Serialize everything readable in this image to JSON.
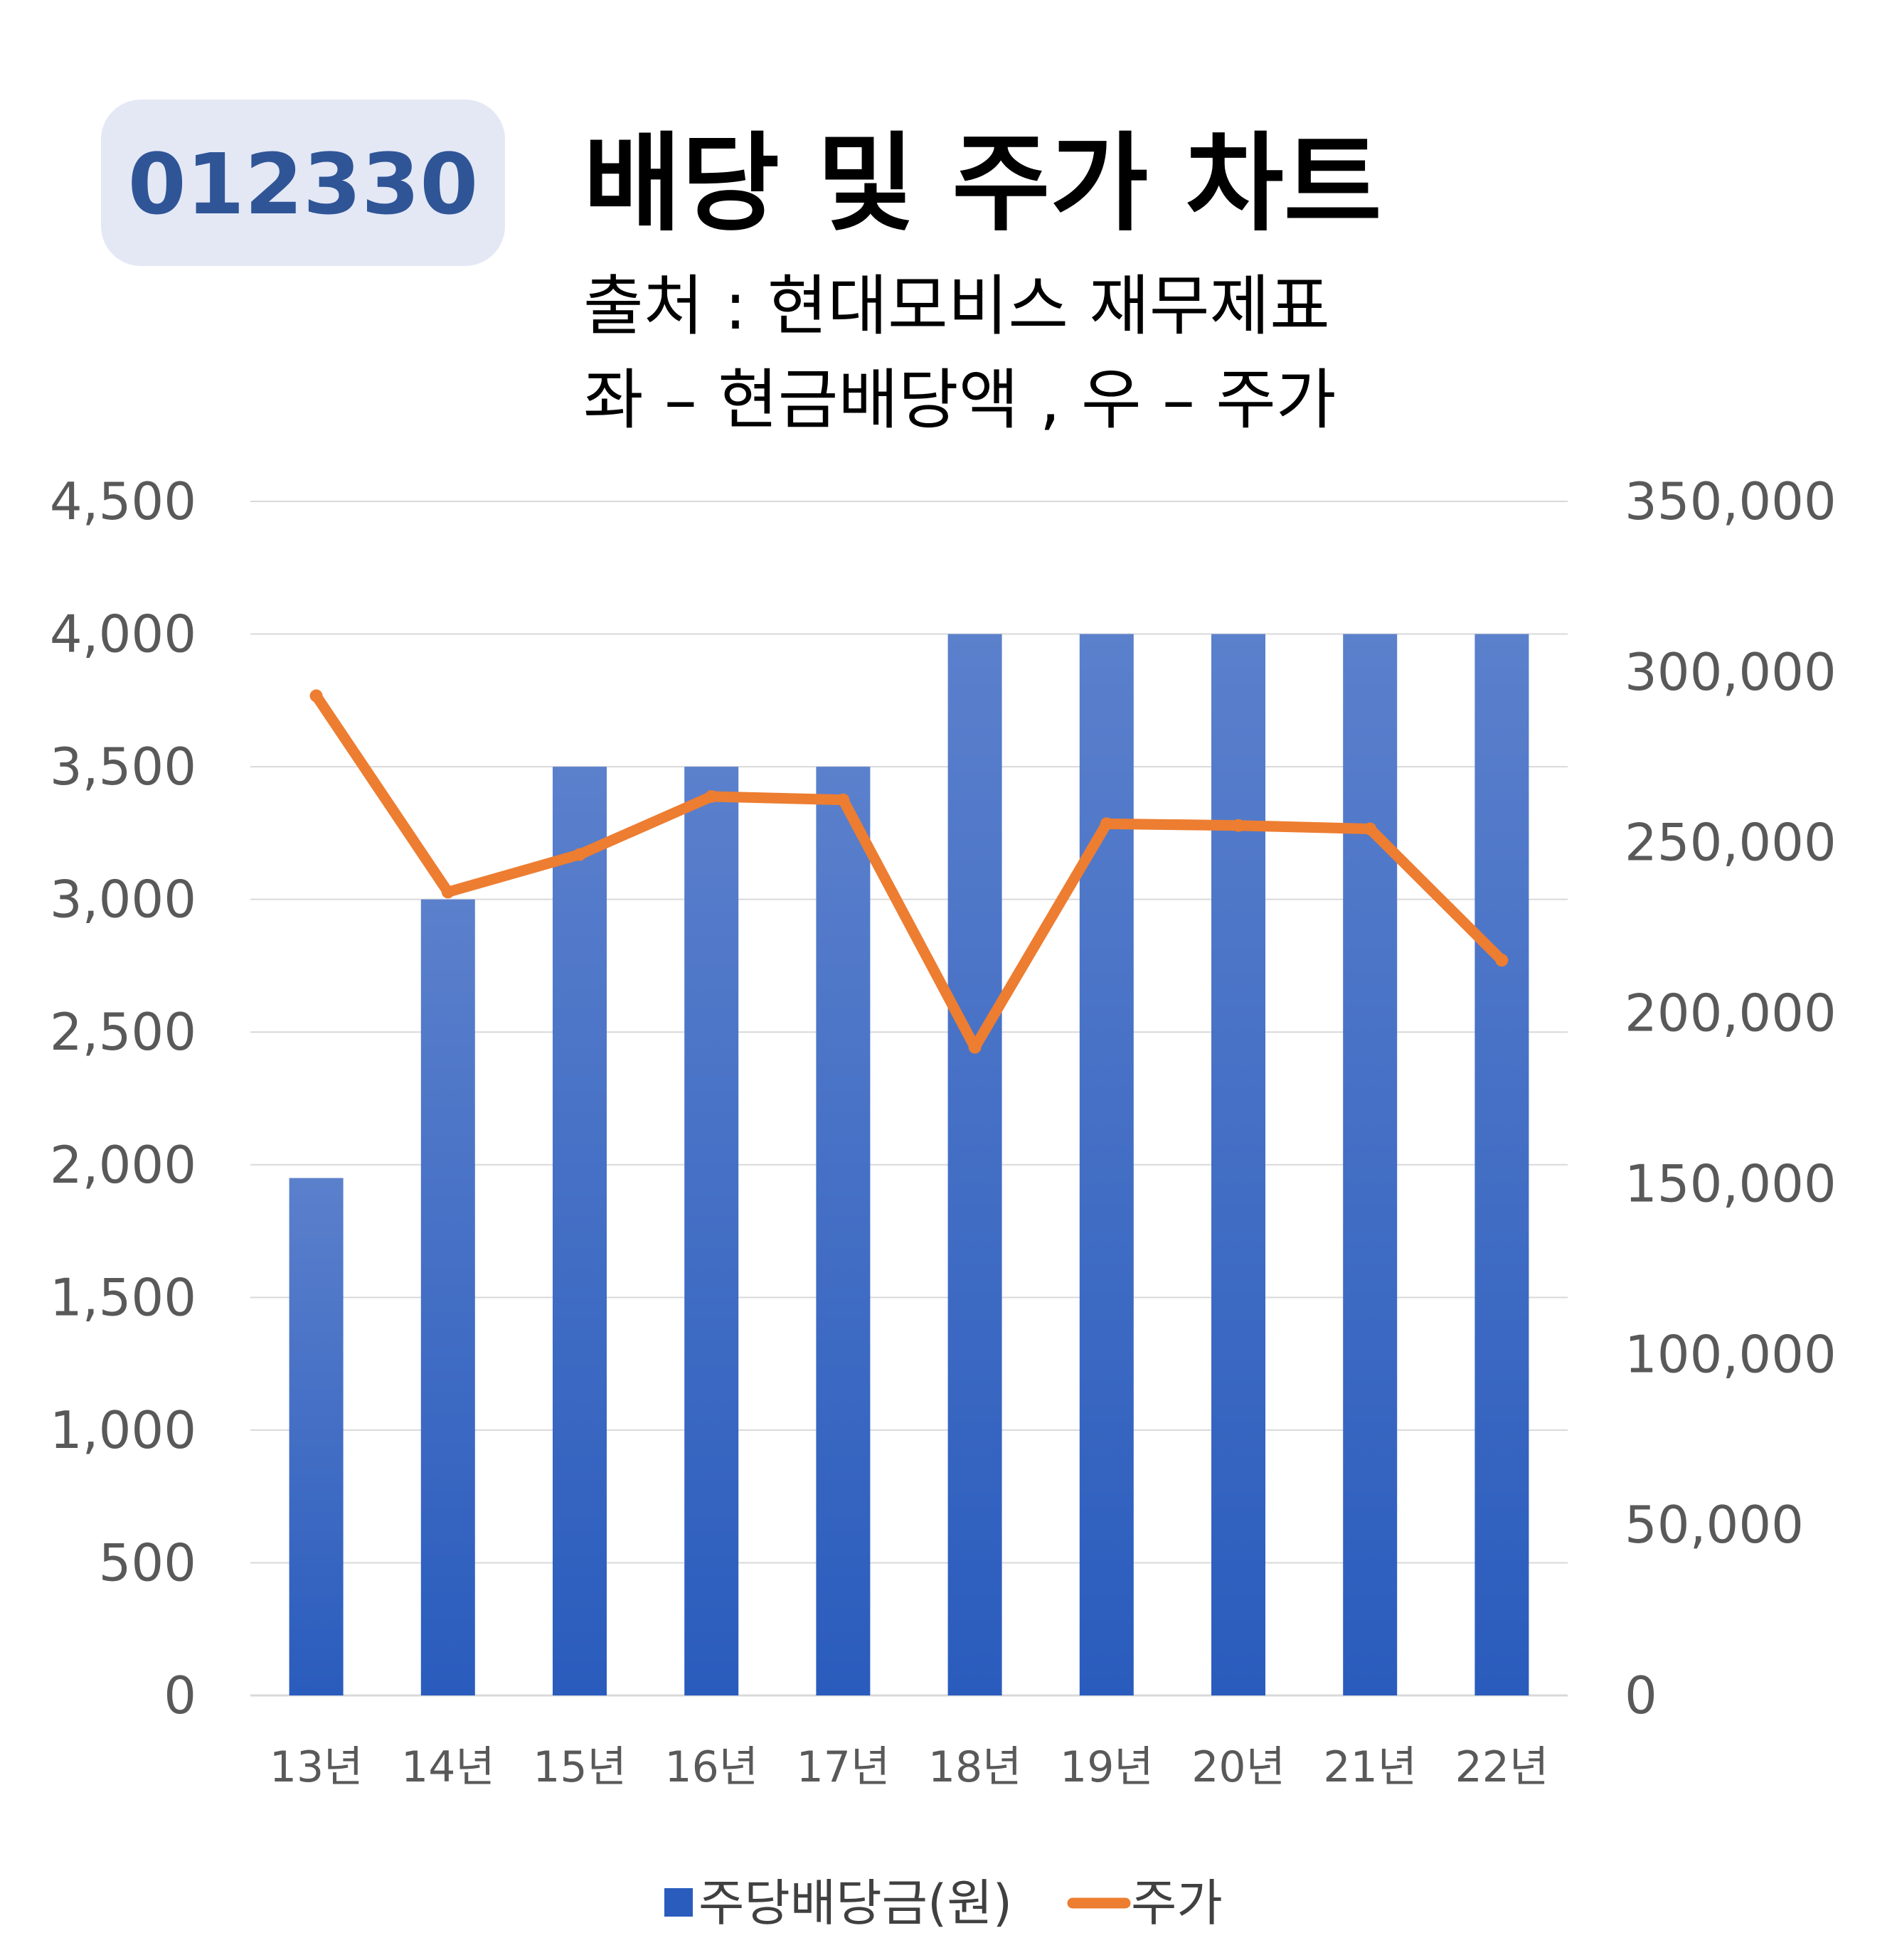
{
  "ticker": "012330",
  "title": "배당 및 주가 차트",
  "subtitle_lines": [
    "출처 : 현대모비스 재무제표",
    "좌 – 현금배당액  ,  우 – 주가"
  ],
  "colors": {
    "bar_top": "#5b80cc",
    "bar_bottom": "#2a5cbd",
    "line": "#ed7d31",
    "ticker_box": "#e4e8f5",
    "ticker_text": "#2f5597"
  },
  "chart_data": {
    "type": "bar",
    "categories": [
      "13년",
      "14년",
      "15년",
      "16년",
      "17년",
      "18년",
      "19년",
      "20년",
      "21년",
      "22년"
    ],
    "series": [
      {
        "name": "주당배당금(원)",
        "type": "bar",
        "axis": "left",
        "values": [
          1950,
          3000,
          3500,
          3500,
          3500,
          4000,
          4000,
          4000,
          4000,
          4000
        ]
      },
      {
        "name": "주가",
        "type": "line",
        "axis": "right",
        "values": [
          293000,
          235500,
          246500,
          263500,
          262500,
          190000,
          255500,
          255000,
          254000,
          215500
        ]
      }
    ],
    "left_axis": {
      "min": 0,
      "max": 4500,
      "ticks": [
        "0",
        "500",
        "1,000",
        "1,500",
        "2,000",
        "2,500",
        "3,000",
        "3,500",
        "4,000",
        "4,500"
      ]
    },
    "right_axis": {
      "min": 0,
      "max": 350000,
      "ticks": [
        "0",
        "50,000",
        "100,000",
        "150,000",
        "200,000",
        "250,000",
        "300,000",
        "350,000"
      ]
    },
    "grid": true,
    "legend": "bottom"
  }
}
